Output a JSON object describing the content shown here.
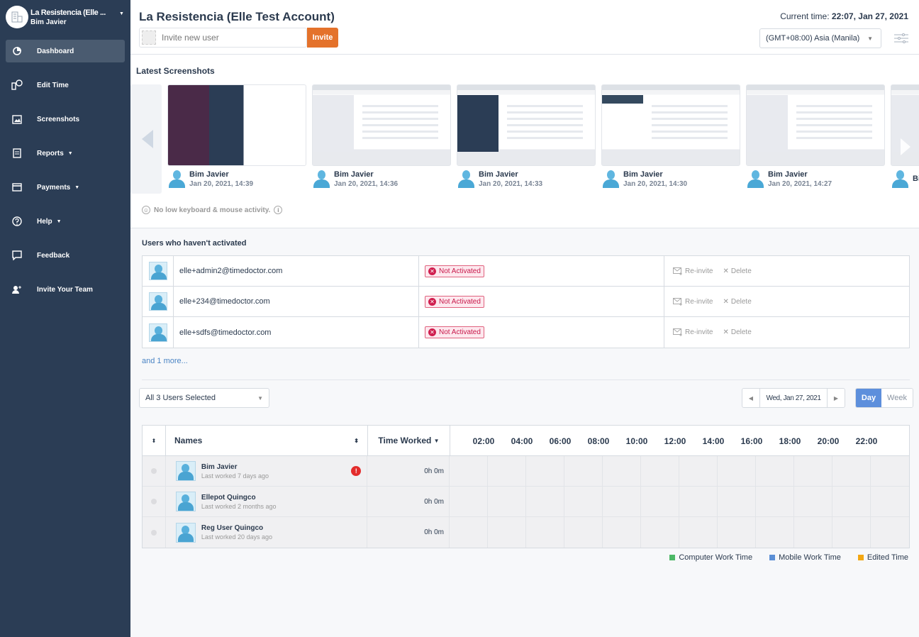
{
  "sidebar": {
    "account_name": "La Resistencia (Elle ...",
    "user_name": "Bim Javier",
    "items": [
      {
        "label": "Dashboard",
        "icon": "dashboard-icon",
        "active": true
      },
      {
        "label": "Edit Time",
        "icon": "edit-time-icon"
      },
      {
        "label": "Screenshots",
        "icon": "screenshots-icon"
      },
      {
        "label": "Reports",
        "icon": "reports-icon",
        "dropdown": true
      },
      {
        "label": "Payments",
        "icon": "payments-icon",
        "dropdown": true
      },
      {
        "label": "Help",
        "icon": "help-icon",
        "dropdown": true
      },
      {
        "label": "Feedback",
        "icon": "feedback-icon"
      },
      {
        "label": "Invite Your Team",
        "icon": "invite-icon"
      }
    ]
  },
  "header": {
    "title": "La Resistencia (Elle Test Account)",
    "invite_placeholder": "Invite new user",
    "invite_label": "Invite",
    "current_time_label": "Current time:",
    "current_time": "22:07, Jan 27, 2021",
    "timezone": "(GMT+08:00) Asia (Manila)"
  },
  "screenshots": {
    "heading": "Latest Screenshots",
    "items": [
      {
        "name": "Bim Javier",
        "time": "Jan 20, 2021, 14:39"
      },
      {
        "name": "Bim Javier",
        "time": "Jan 20, 2021, 14:36"
      },
      {
        "name": "Bim Javier",
        "time": "Jan 20, 2021, 14:33"
      },
      {
        "name": "Bim Javier",
        "time": "Jan 20, 2021, 14:30"
      },
      {
        "name": "Bim Javier",
        "time": "Jan 20, 2021, 14:27"
      },
      {
        "name": "Bi",
        "time": ""
      }
    ],
    "activity_note": "No low keyboard & mouse activity."
  },
  "inactive": {
    "heading": "Users who haven't activated",
    "status": "Not Activated",
    "reinvite": "Re-invite",
    "delete": "Delete",
    "users": [
      "elle+admin2@timedoctor.com",
      "elle+234@timedoctor.com",
      "elle+sdfs@timedoctor.com"
    ],
    "more": "and 1 more..."
  },
  "controls": {
    "user_select": "All 3 Users Selected",
    "date": "Wed, Jan 27, 2021",
    "day": "Day",
    "week": "Week"
  },
  "table": {
    "col_names": "Names",
    "col_time": "Time Worked",
    "hours": [
      "02:00",
      "04:00",
      "06:00",
      "08:00",
      "10:00",
      "12:00",
      "14:00",
      "16:00",
      "18:00",
      "20:00",
      "22:00"
    ],
    "rows": [
      {
        "name": "Bim Javier",
        "last": "Last worked 7 days ago",
        "time": "0h 0m",
        "warning": true
      },
      {
        "name": "Ellepot Quingco",
        "last": "Last worked 2 months ago",
        "time": "0h 0m"
      },
      {
        "name": "Reg User Quingco",
        "last": "Last worked 20 days ago",
        "time": "0h 0m"
      }
    ]
  },
  "legend": [
    {
      "label": "Computer Work Time",
      "color": "#4cb866"
    },
    {
      "label": "Mobile Work Time",
      "color": "#5b8fd6"
    },
    {
      "label": "Edited Time",
      "color": "#f3a712"
    }
  ],
  "colors": {
    "sidebar": "#2b3d55",
    "invite": "#e4722b",
    "day_active": "#5d8fdc",
    "not_activated": "#c8184a"
  }
}
